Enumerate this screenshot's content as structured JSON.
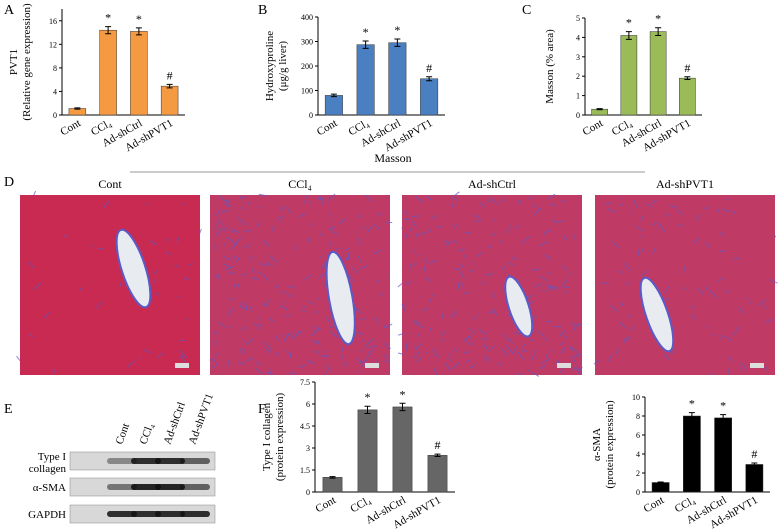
{
  "panel_labels": [
    "A",
    "B",
    "C",
    "D",
    "E",
    "F"
  ],
  "chart_data": [
    {
      "type": "bar",
      "ylabel": [
        "PVT1",
        "(Relative gene expression)"
      ],
      "categories": [
        "Cont",
        "CCl₄",
        "Ad-shCtrl",
        "Ad-shPVT1"
      ],
      "values": [
        1.1,
        14.4,
        14.2,
        4.9
      ],
      "errors": [
        0.1,
        0.6,
        0.6,
        0.3
      ],
      "annotations": [
        null,
        "*",
        "*",
        "#"
      ],
      "color": "#f39a42",
      "ylim": [
        0,
        18
      ],
      "yticks": [
        0,
        4,
        8,
        12,
        16
      ]
    },
    {
      "type": "bar",
      "ylabel": [
        "Hydroxyproline",
        "(μg/g liver)"
      ],
      "categories": [
        "Cont",
        "CCl₄",
        "Ad-shCtrl",
        "Ad-shPVT1"
      ],
      "values": [
        80,
        287,
        295,
        148
      ],
      "errors": [
        5,
        15,
        15,
        8
      ],
      "annotations": [
        null,
        "*",
        "*",
        "#"
      ],
      "color": "#4a7fc1",
      "ylim": [
        0,
        400
      ],
      "yticks": [
        0,
        100,
        200,
        300,
        400
      ]
    },
    {
      "type": "bar",
      "ylabel": [
        "Masson (% area)"
      ],
      "categories": [
        "Cont",
        "CCl₄",
        "Ad-shCtrl",
        "Ad-shPVT1"
      ],
      "values": [
        0.3,
        4.1,
        4.3,
        1.9
      ],
      "errors": [
        0.03,
        0.2,
        0.2,
        0.07
      ],
      "annotations": [
        null,
        "*",
        "*",
        "#"
      ],
      "color": "#9bbb59",
      "ylim": [
        0,
        5
      ],
      "yticks": [
        0,
        1,
        2,
        3,
        4,
        5
      ]
    },
    {
      "type": "bar",
      "ylabel": [
        "Type I collagen",
        "(protein expression)"
      ],
      "categories": [
        "Cont",
        "CCl₄",
        "Ad-shCtrl",
        "Ad-shPVT1"
      ],
      "values": [
        1.0,
        5.6,
        5.8,
        2.5
      ],
      "errors": [
        0.05,
        0.25,
        0.25,
        0.08
      ],
      "annotations": [
        null,
        "*",
        "*",
        "#"
      ],
      "color": "#666666",
      "ylim": [
        0,
        7.5
      ],
      "yticks": [
        0,
        1.5,
        3,
        4.5,
        6,
        7.5
      ]
    },
    {
      "type": "bar",
      "ylabel": [
        "α-SMA",
        "(protein expression)"
      ],
      "categories": [
        "Cont",
        "CCl₄",
        "Ad-shCtrl",
        "Ad-shPVT1"
      ],
      "values": [
        1.0,
        8.0,
        7.8,
        2.9
      ],
      "errors": [
        0.05,
        0.35,
        0.35,
        0.15
      ],
      "annotations": [
        null,
        "*",
        "*",
        "#"
      ],
      "color": "#000000",
      "ylim": [
        0,
        10
      ],
      "yticks": [
        0,
        2,
        4,
        6,
        8,
        10
      ]
    }
  ],
  "histology": {
    "title": "Masson",
    "panels": [
      "Cont",
      "CCl₄",
      "Ad-shCtrl",
      "Ad-shPVT1"
    ]
  },
  "blot": {
    "lanes": [
      "Cont",
      "CCl₄",
      "Ad-shCtrl",
      "Ad-shPVT1"
    ],
    "rows": [
      [
        "Type I",
        "collagen"
      ],
      [
        "α-SMA"
      ],
      [
        "GAPDH"
      ]
    ]
  }
}
